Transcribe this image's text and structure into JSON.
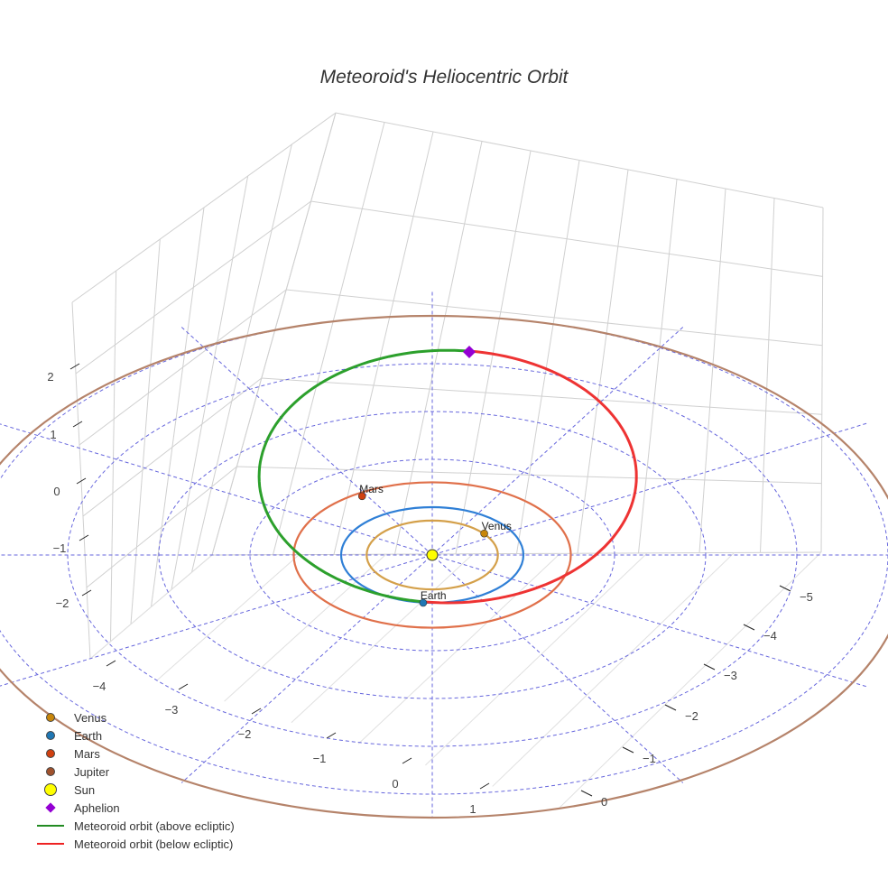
{
  "chart_data": {
    "type": "scatter3d",
    "title": "Meteoroid's Heliocentric Orbit",
    "axes": {
      "x": {
        "ticks": [
          "−4",
          "−3",
          "−2",
          "−1",
          "0",
          "1"
        ]
      },
      "y": {
        "ticks": [
          "−5",
          "−4",
          "−3",
          "−2",
          "−1",
          "0"
        ]
      },
      "z": {
        "ticks": [
          "2",
          "1",
          "0",
          "−1",
          "−2"
        ]
      }
    },
    "ecliptic_rings_au": [
      1,
      2,
      3,
      4,
      5
    ],
    "orbits": [
      {
        "name": "Venus",
        "a": 0.72,
        "color": "#d4a04a"
      },
      {
        "name": "Earth",
        "a": 1.0,
        "color": "#2f7fd6"
      },
      {
        "name": "Mars",
        "a": 1.52,
        "color": "#e0704a"
      },
      {
        "name": "Jupiter",
        "a": 5.2,
        "color": "#b5836a"
      }
    ],
    "planets": [
      {
        "name": "Venus",
        "x": 0.57,
        "y": 0.45,
        "color": "#c8860a"
      },
      {
        "name": "Earth",
        "x": -0.1,
        "y": -1.0,
        "color": "#1f77b4"
      },
      {
        "name": "Mars",
        "x": -0.77,
        "y": 1.23,
        "color": "#d04010"
      }
    ],
    "meteoroid": {
      "cx": 0.17,
      "cy": 1.64,
      "a": 2.07,
      "b": 2.64,
      "above_color": "#2ca02c",
      "below_color": "#ee3333"
    },
    "aphelion": {
      "x": 0.4,
      "y": 4.2,
      "color": "#9400d3"
    },
    "legend": [
      {
        "label": "Venus",
        "type": "dot",
        "color": "#c8860a"
      },
      {
        "label": "Earth",
        "type": "dot",
        "color": "#1f77b4"
      },
      {
        "label": "Mars",
        "type": "dot",
        "color": "#d04010"
      },
      {
        "label": "Jupiter",
        "type": "dot",
        "color": "#a0522d"
      },
      {
        "label": "Sun",
        "type": "sun",
        "color": "#ffff00"
      },
      {
        "label": "Aphelion",
        "type": "diamond",
        "color": "#9400d3"
      },
      {
        "label": "Meteoroid orbit (above ecliptic)",
        "type": "line",
        "color": "#228b22"
      },
      {
        "label": "Meteoroid orbit (below ecliptic)",
        "type": "line",
        "color": "#ee2222"
      }
    ]
  }
}
